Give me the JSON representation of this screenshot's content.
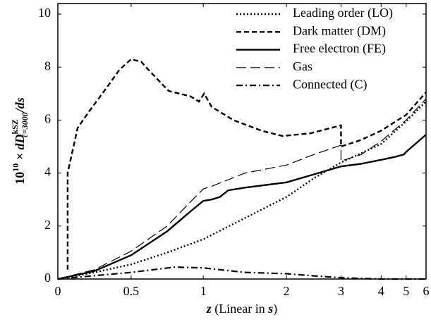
{
  "chart_data": {
    "type": "line",
    "ylabel": [
      "10",
      "10",
      " × dD",
      "kSZ",
      "ℓ=3000",
      "/ds"
    ],
    "xlabel": [
      "z",
      " (Linear in ",
      "s",
      ")"
    ],
    "xlim": [
      0,
      6
    ],
    "xticks": [
      0,
      0.5,
      1,
      2,
      3,
      4,
      5,
      6
    ],
    "ylim": [
      0,
      10.4
    ],
    "yticks": [
      0,
      2,
      4,
      6,
      8,
      10
    ],
    "legend": "upper right",
    "series": [
      {
        "name": "Leading order (LO)",
        "color": "#000000",
        "style": "dotted",
        "x": [
          0,
          0.25,
          0.5,
          0.75,
          1,
          1.5,
          2,
          2.5,
          3,
          4,
          5,
          6
        ],
        "values": [
          0,
          0.25,
          0.55,
          1.0,
          1.5,
          2.3,
          3.1,
          3.8,
          4.4,
          5.1,
          5.95,
          6.7
        ]
      },
      {
        "name": "Dark matter (DM)",
        "color": "#000000",
        "style": "dashed",
        "x": [
          0.067,
          0.067,
          0.135,
          0.21,
          0.33,
          0.42,
          0.5,
          0.57,
          0.62,
          0.76,
          0.91,
          0.97,
          1.01,
          1.1,
          1.36,
          1.7,
          1.95,
          2.44,
          3.0,
          3.0,
          3.5,
          4,
          5,
          6
        ],
        "values": [
          0.35,
          4.0,
          5.7,
          6.3,
          7.2,
          7.9,
          8.3,
          8.2,
          7.9,
          7.1,
          6.9,
          6.7,
          7.0,
          6.5,
          6.0,
          5.6,
          5.4,
          5.5,
          5.8,
          5.0,
          5.25,
          5.6,
          6.2,
          7.05
        ]
      },
      {
        "name": "Free electron (FE)",
        "color": "#000000",
        "style": "solid",
        "x": [
          0,
          0.25,
          0.5,
          0.75,
          0.9,
          1.0,
          1.1,
          1.2,
          1.3,
          1.5,
          2,
          2.5,
          3,
          3.5,
          4,
          4.5,
          4.9,
          5,
          6
        ],
        "values": [
          0,
          0.3,
          0.9,
          1.8,
          2.5,
          2.95,
          3.0,
          3.1,
          3.35,
          3.45,
          3.65,
          3.95,
          4.25,
          4.35,
          4.5,
          4.6,
          4.7,
          4.8,
          5.45
        ]
      },
      {
        "name": "Gas",
        "color": "#000000",
        "style": "longdash",
        "x": [
          0,
          0.25,
          0.5,
          0.75,
          0.9,
          1.0,
          1.1,
          1.3,
          1.5,
          2,
          2.5,
          3.0,
          3.0,
          3.5,
          4,
          5,
          6
        ],
        "values": [
          0,
          0.35,
          1.05,
          2.0,
          2.85,
          3.4,
          3.5,
          3.75,
          4.0,
          4.3,
          4.7,
          5.05,
          4.45,
          4.7,
          5.2,
          6.0,
          6.8
        ]
      },
      {
        "name": "Connected (C)",
        "color": "#000000",
        "style": "dashdot",
        "x": [
          0,
          0.5,
          0.8,
          1.0,
          1.5,
          2,
          2.5,
          3,
          3.5,
          4,
          6
        ],
        "values": [
          0,
          0.25,
          0.45,
          0.42,
          0.25,
          0.2,
          0.12,
          0.05,
          0.02,
          0,
          0
        ]
      }
    ]
  }
}
